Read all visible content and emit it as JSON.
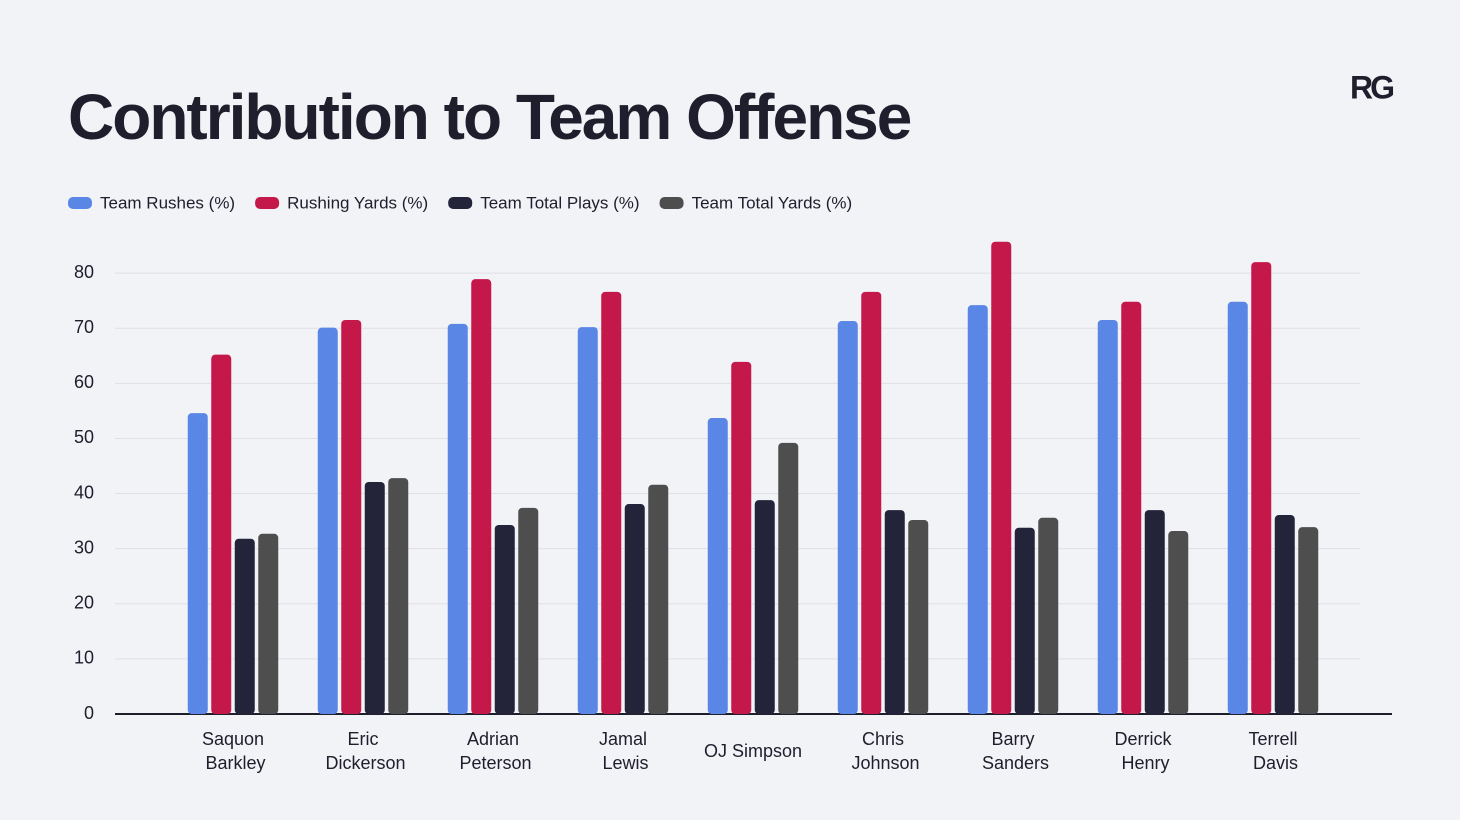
{
  "chart_data": {
    "type": "bar",
    "title": "Contribution to Team Offense",
    "logo": "RG",
    "categories": [
      "Saquon Barkley",
      "Eric Dickerson",
      "Adrian Peterson",
      "Jamal Lewis",
      "OJ Simpson",
      "Chris Johnson",
      "Barry Sanders",
      "Derrick Henry",
      "Terrell Davis"
    ],
    "series": [
      {
        "name": "Team Rushes (%)",
        "color": "#5a86e6",
        "values": [
          54.6,
          70.1,
          70.8,
          70.2,
          53.7,
          71.3,
          74.2,
          71.5,
          74.8
        ]
      },
      {
        "name": "Rushing Yards (%)",
        "color": "#c4174a",
        "values": [
          65.2,
          71.5,
          78.9,
          76.6,
          63.9,
          76.6,
          85.7,
          74.8,
          82.0
        ]
      },
      {
        "name": "Team Total Plays (%)",
        "color": "#23233a",
        "values": [
          31.8,
          42.1,
          34.3,
          38.1,
          38.8,
          37.0,
          33.8,
          37.0,
          36.1
        ]
      },
      {
        "name": "Team Total Yards (%)",
        "color": "#4e4e4e",
        "values": [
          32.7,
          42.8,
          37.4,
          41.6,
          49.2,
          35.2,
          35.6,
          33.2,
          33.9
        ]
      }
    ],
    "ylim": [
      0,
      90
    ],
    "yticks": [
      0,
      10,
      20,
      30,
      40,
      50,
      60,
      70,
      80
    ],
    "grid": true
  }
}
